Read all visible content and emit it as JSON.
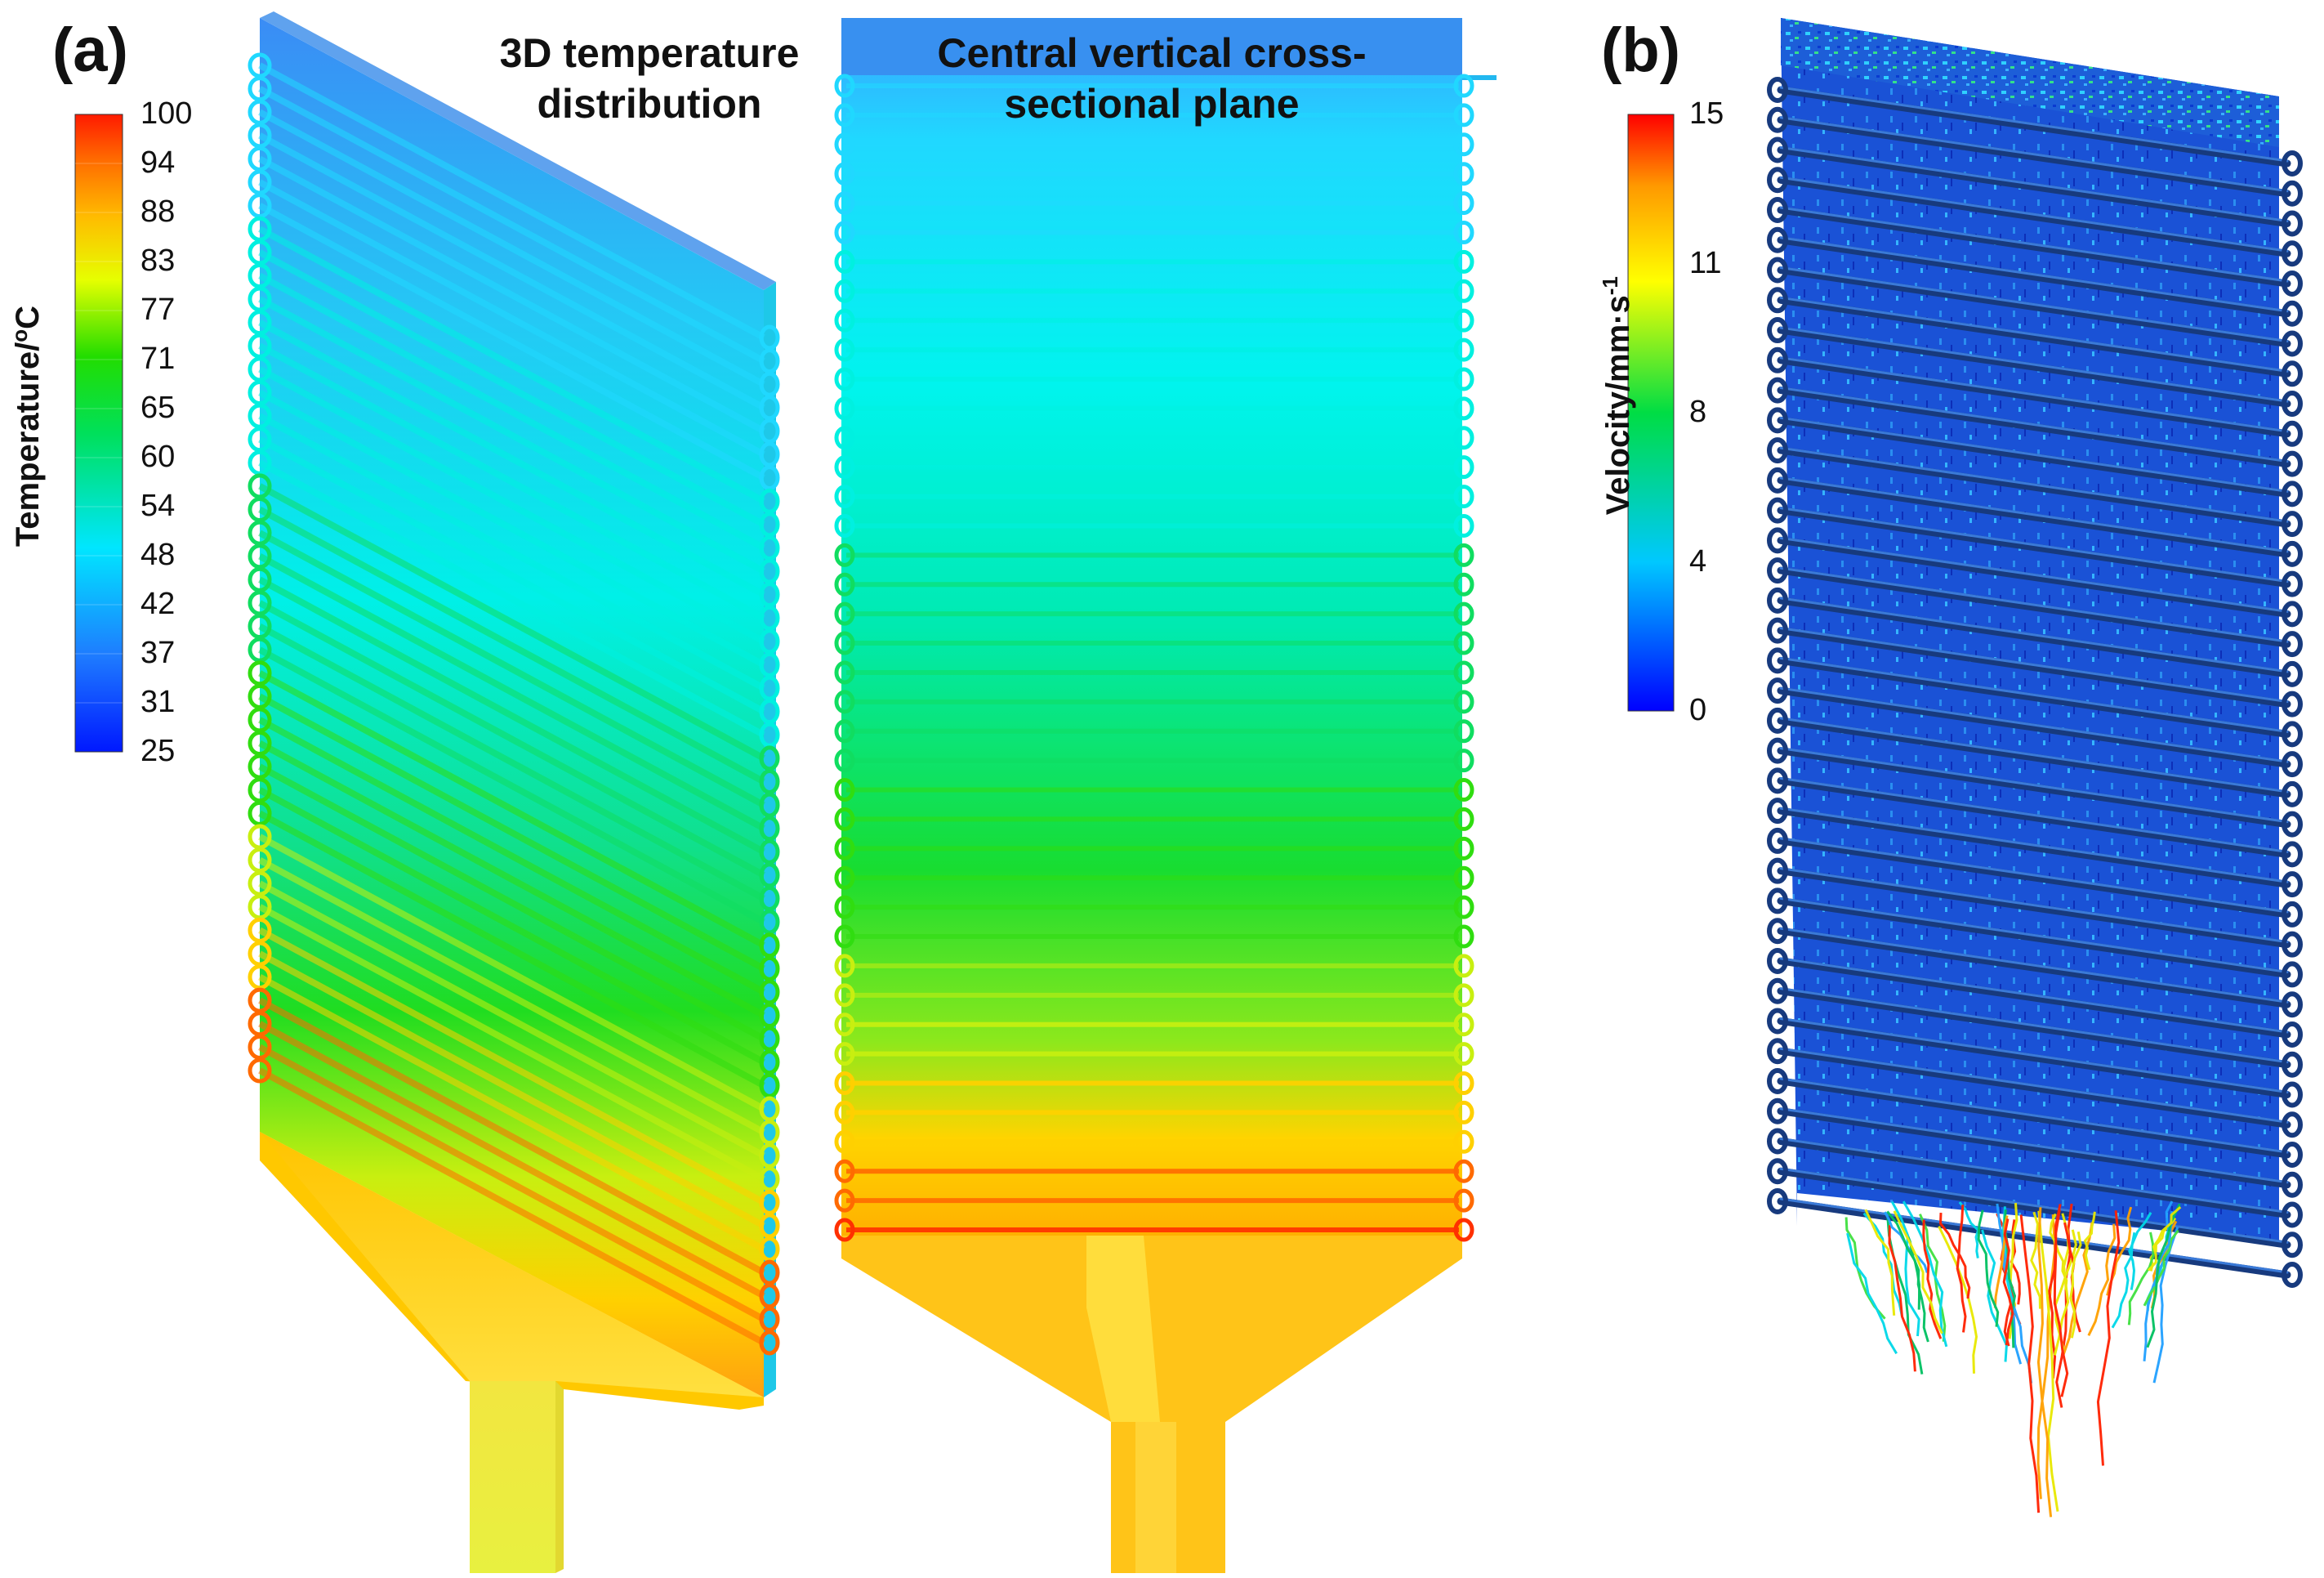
{
  "panels": {
    "a": {
      "label": "(a)",
      "title_3d": "3D temperature distribution",
      "title_3d_lines": [
        "3D temperature",
        "distribution"
      ],
      "title_plane": "Central vertical cross-sectional plane",
      "title_plane_lines": [
        "Central vertical cross-",
        "sectional plane"
      ],
      "colorbar": {
        "title": "Temperature/",
        "unit_sup": "o",
        "unit": "C",
        "ticks": [
          "100",
          "94",
          "88",
          "83",
          "77",
          "71",
          "65",
          "60",
          "54",
          "48",
          "42",
          "37",
          "31",
          "25"
        ],
        "min": 25,
        "max": 100
      }
    },
    "b": {
      "label": "(b)",
      "colorbar": {
        "title": "Velocity/mm·s",
        "unit_sup": "-1",
        "ticks": [
          "15",
          "11",
          "8",
          "4",
          "0"
        ],
        "min": 0,
        "max": 15
      }
    }
  },
  "colors": {
    "cold": "#0000ff",
    "cool": "#1e90ff",
    "cyan": "#00ffff",
    "green": "#00e000",
    "yellow": "#ffff00",
    "orange": "#ffa500",
    "hot": "#ff0000",
    "pipe_blue": "#1a3f8f"
  }
}
